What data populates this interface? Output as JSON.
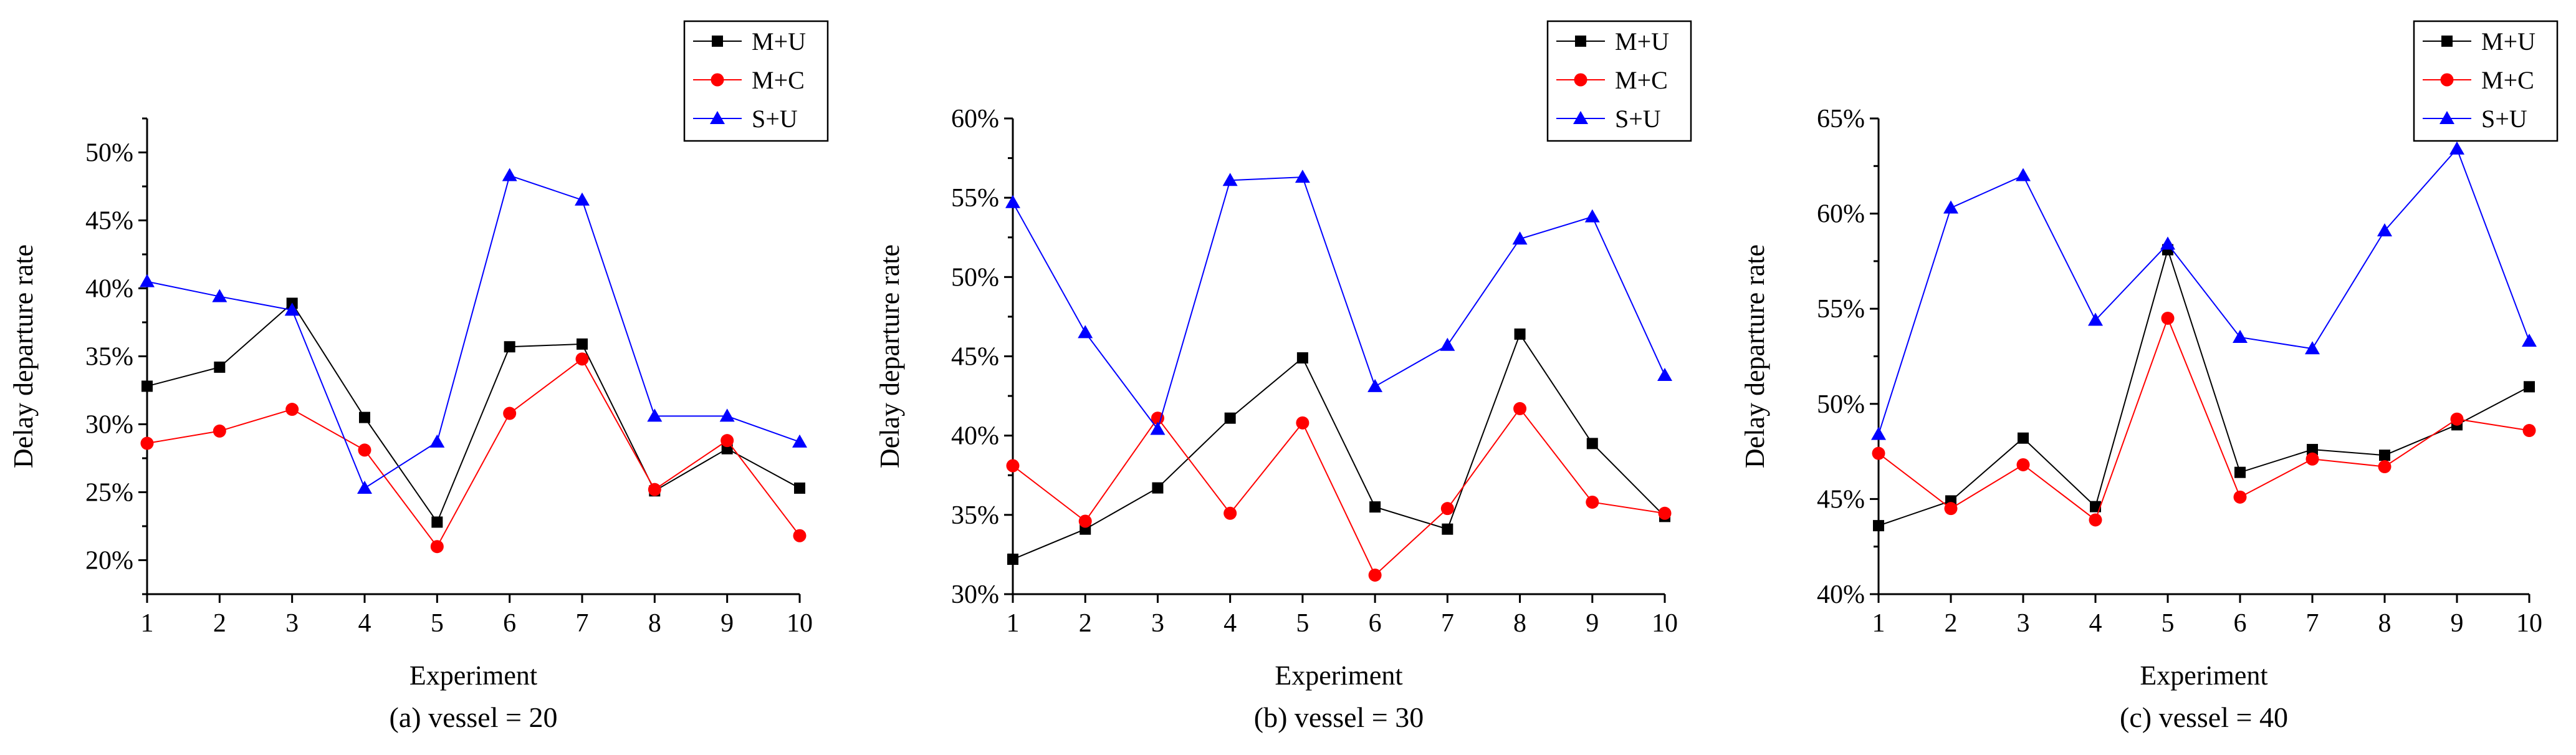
{
  "chart_data": [
    {
      "type": "line",
      "caption": "(a) vessel = 20",
      "xlabel": "Experiment",
      "ylabel": "Delay departure rate",
      "x": [
        1,
        2,
        3,
        4,
        5,
        6,
        7,
        8,
        9,
        10
      ],
      "xlim": [
        1,
        10
      ],
      "ylim": [
        17.5,
        52.5
      ],
      "yticks": [
        20,
        25,
        30,
        35,
        40,
        45,
        50
      ],
      "ytick_format": "percent",
      "grid": false,
      "legend_position": "top-right",
      "series": [
        {
          "name": "M+U",
          "color": "#000000",
          "marker": "square",
          "values": [
            32.8,
            34.2,
            38.9,
            30.5,
            22.8,
            35.7,
            35.9,
            25.1,
            28.2,
            25.3
          ]
        },
        {
          "name": "M+C",
          "color": "#ff0000",
          "marker": "circle",
          "values": [
            28.6,
            29.5,
            31.1,
            28.1,
            21.0,
            30.8,
            34.8,
            25.2,
            28.8,
            21.8
          ]
        },
        {
          "name": "S+U",
          "color": "#0000ff",
          "marker": "triangle",
          "values": [
            40.5,
            39.4,
            38.4,
            25.3,
            28.7,
            48.3,
            46.5,
            30.6,
            30.6,
            28.7
          ]
        }
      ]
    },
    {
      "type": "line",
      "caption": "(b) vessel = 30",
      "xlabel": "Experiment",
      "ylabel": "Delay departure rate",
      "x": [
        1,
        2,
        3,
        4,
        5,
        6,
        7,
        8,
        9,
        10
      ],
      "xlim": [
        1,
        10
      ],
      "ylim": [
        30,
        60
      ],
      "yticks": [
        30,
        35,
        40,
        45,
        50,
        55,
        60
      ],
      "ytick_format": "percent",
      "grid": false,
      "legend_position": "top-right",
      "series": [
        {
          "name": "M+U",
          "color": "#000000",
          "marker": "square",
          "values": [
            32.2,
            34.1,
            36.7,
            41.1,
            44.9,
            35.5,
            34.1,
            46.4,
            39.5,
            34.9
          ]
        },
        {
          "name": "M+C",
          "color": "#ff0000",
          "marker": "circle",
          "values": [
            38.1,
            34.6,
            41.1,
            35.1,
            40.8,
            31.2,
            35.4,
            41.7,
            35.8,
            35.1
          ]
        },
        {
          "name": "S+U",
          "color": "#0000ff",
          "marker": "triangle",
          "values": [
            54.7,
            46.5,
            40.4,
            56.1,
            56.3,
            43.1,
            45.7,
            52.4,
            53.8,
            43.8
          ]
        }
      ]
    },
    {
      "type": "line",
      "caption": "(c) vessel = 40",
      "xlabel": "Experiment",
      "ylabel": "Delay departure rate",
      "x": [
        1,
        2,
        3,
        4,
        5,
        6,
        7,
        8,
        9,
        10
      ],
      "xlim": [
        1,
        10
      ],
      "ylim": [
        40,
        65
      ],
      "yticks": [
        40,
        45,
        50,
        55,
        60,
        65
      ],
      "ytick_format": "percent",
      "grid": false,
      "legend_position": "top-right",
      "series": [
        {
          "name": "M+U",
          "color": "#000000",
          "marker": "square",
          "values": [
            43.6,
            44.9,
            48.2,
            44.6,
            58.1,
            46.4,
            47.6,
            47.3,
            48.9,
            50.9
          ]
        },
        {
          "name": "M+C",
          "color": "#ff0000",
          "marker": "circle",
          "values": [
            47.4,
            44.5,
            46.8,
            43.9,
            54.5,
            45.1,
            47.1,
            46.7,
            49.2,
            48.6
          ]
        },
        {
          "name": "S+U",
          "color": "#0000ff",
          "marker": "triangle",
          "values": [
            48.4,
            60.3,
            62.0,
            54.4,
            58.4,
            53.5,
            52.9,
            59.1,
            63.4,
            53.3
          ]
        }
      ]
    }
  ]
}
